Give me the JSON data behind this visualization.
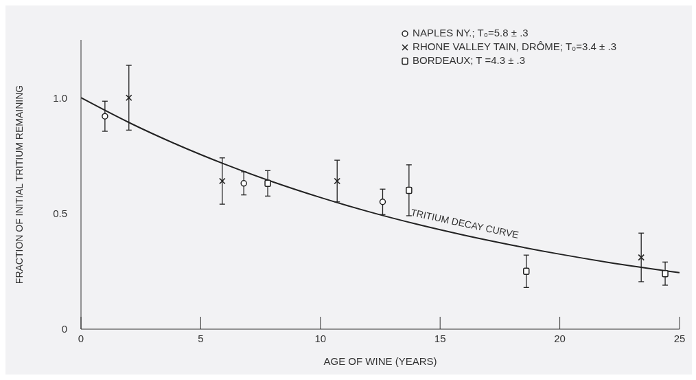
{
  "chart_data": {
    "type": "scatter",
    "xlabel": "AGE OF WINE (YEARS)",
    "ylabel": "FRACTION OF INITIAL TRITIUM REMAINING",
    "xlim": [
      0,
      25
    ],
    "xticks": [
      0,
      5,
      10,
      15,
      20,
      25
    ],
    "ylim": [
      0,
      1.25
    ],
    "yticks": [
      0,
      0.5,
      {
        "value": 1,
        "label": "1.0"
      }
    ],
    "grid": false,
    "legend": "top right",
    "series": [
      {
        "name": "NAPLES NY.; T₀=5.8 ± .3",
        "color": "#222222",
        "marker": "circle",
        "x": [
          1,
          6.8,
          12.6
        ],
        "values": [
          0.92,
          0.63,
          0.55
        ],
        "errors": [
          0.065,
          0.05,
          0.055
        ]
      },
      {
        "name": "RHONE VALLEY TAIN, DRÔME; T₀=3.4 ± .3",
        "color": "#222222",
        "marker": "cross",
        "x": [
          2,
          5.9,
          10.7,
          23.4
        ],
        "values": [
          1.0,
          0.64,
          0.64,
          0.31
        ],
        "errors": [
          0.14,
          0.1,
          0.09,
          0.105
        ]
      },
      {
        "name": "BORDEAUX; T =4.3 ± .3",
        "color": "#222222",
        "marker": "square",
        "x": [
          7.8,
          13.7,
          18.6,
          24.4
        ],
        "values": [
          0.63,
          0.6,
          0.25,
          0.24
        ],
        "errors": [
          0.055,
          0.11,
          0.07,
          0.05
        ]
      },
      {
        "name": "TRITIUM DECAY CURVE",
        "type": "line",
        "color": "#222222",
        "marker": "none",
        "x": [
          0,
          2,
          4,
          6,
          8,
          10,
          12,
          14,
          16,
          18,
          20,
          22,
          25
        ],
        "values": [
          1.0,
          0.893,
          0.798,
          0.713,
          0.637,
          0.569,
          0.508,
          0.454,
          0.406,
          0.363,
          0.324,
          0.289,
          0.244
        ]
      }
    ]
  }
}
